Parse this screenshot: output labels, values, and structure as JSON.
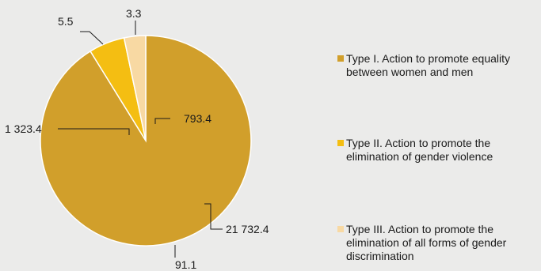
{
  "chart_data": {
    "type": "pie",
    "labels": [
      "Type I. Action to promote equality between women and men",
      "Type II. Action to promote the elimination of gender violence",
      "Type III. Action to promote the elimination of all forms of gender discrimination"
    ],
    "series": [
      {
        "values": [
          91.1,
          5.5,
          3.3
        ]
      }
    ],
    "data_labels": [
      {
        "text": "91.1",
        "slice": 0
      },
      {
        "text": "5.5",
        "slice": 1
      },
      {
        "text": "3.3",
        "slice": 2
      },
      {
        "text": "21 732.4",
        "slice": 0
      },
      {
        "text": "1 323.4",
        "slice": 1
      },
      {
        "text": "793.4",
        "slice": 2
      }
    ],
    "colors": [
      "#d19f2b",
      "#f4be12",
      "#f8d9a3"
    ],
    "legend_position": "right"
  }
}
